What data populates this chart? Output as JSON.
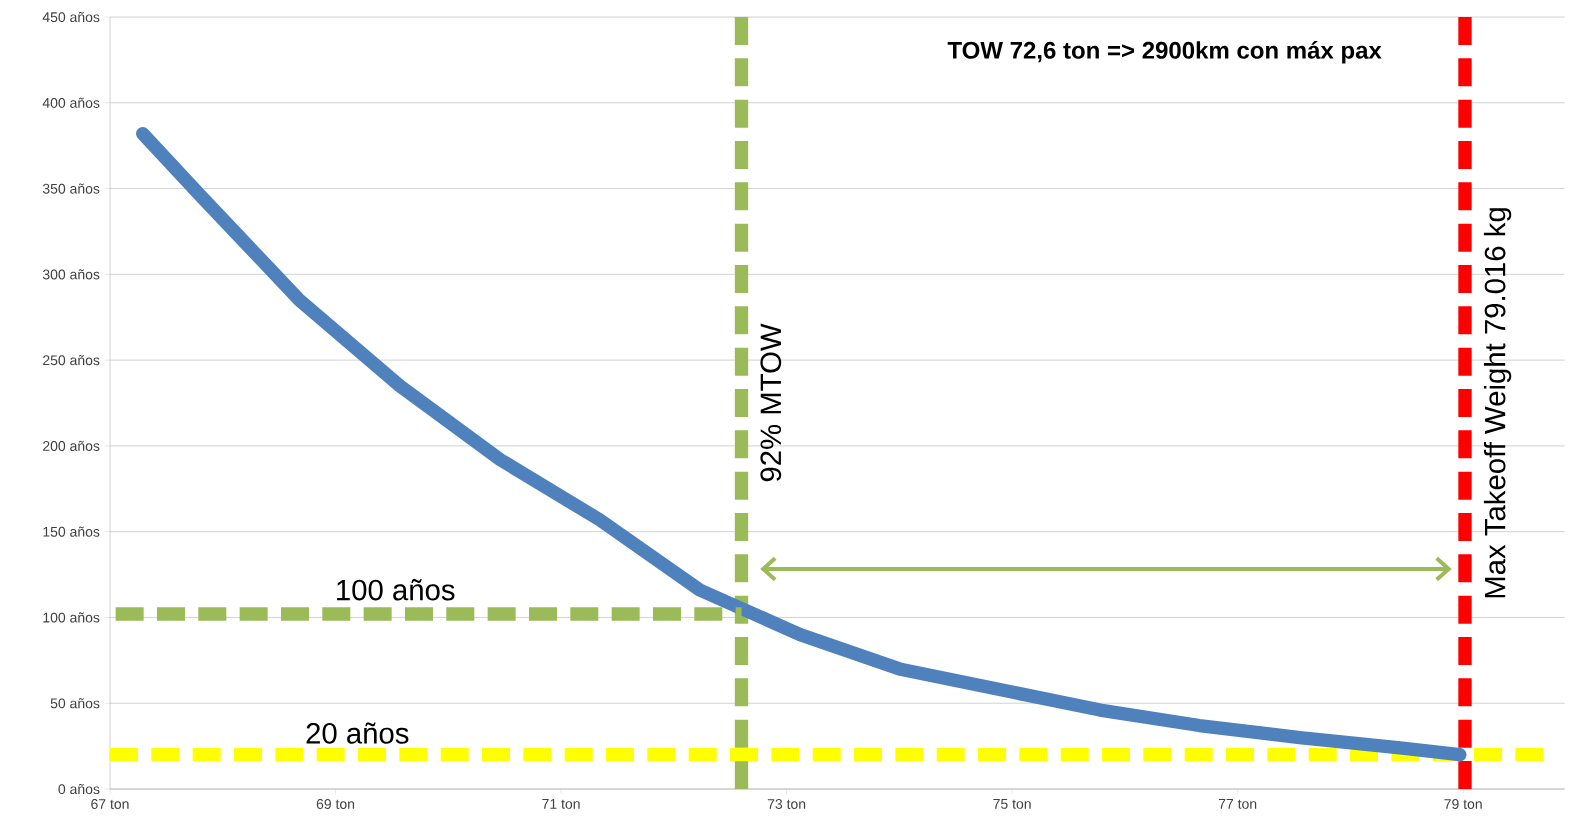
{
  "chart_data": {
    "type": "line",
    "x": [
      67.29,
      67.8,
      68.68,
      69.57,
      70.46,
      71.34,
      72.23,
      73.12,
      74.0,
      74.89,
      75.78,
      76.66,
      77.55,
      78.44,
      78.97
    ],
    "series": [
      {
        "color": "#4f81bd",
        "values": [
          382,
          346,
          285,
          235,
          192,
          157,
          116,
          90,
          70,
          58,
          46,
          37,
          30,
          24,
          20
        ]
      },
      {
        "name": "100 años",
        "color": "#9bbb59",
        "x": [
          67.05,
          72.6
        ],
        "values": [
          102,
          102
        ],
        "line_style": "dashed"
      }
    ],
    "xlim": [
      67,
      79.9
    ],
    "ylim": [
      0,
      450
    ],
    "xticks": [
      {
        "value": 67,
        "label": "67 ton"
      },
      {
        "value": 69,
        "label": "69 ton"
      },
      {
        "value": 71,
        "label": "71 ton"
      },
      {
        "value": 73,
        "label": "73 ton"
      },
      {
        "value": 75,
        "label": "75 ton"
      },
      {
        "value": 77,
        "label": "77 ton"
      },
      {
        "value": 79,
        "label": "79 ton"
      }
    ],
    "yticks": [
      {
        "value": 0,
        "label": "0 años"
      },
      {
        "value": 50,
        "label": "50 años"
      },
      {
        "value": 100,
        "label": "100 años"
      },
      {
        "value": 150,
        "label": "150 años"
      },
      {
        "value": 200,
        "label": "200 años"
      },
      {
        "value": 250,
        "label": "250 años"
      },
      {
        "value": 300,
        "label": "300 años"
      },
      {
        "value": 350,
        "label": "350 años"
      },
      {
        "value": 400,
        "label": "400 años"
      },
      {
        "value": 450,
        "label": "450 años"
      }
    ],
    "grid": "y",
    "ref_lines": [
      {
        "axis": "x",
        "value": 72.6,
        "label": "92% MTOW",
        "color": "#9bbb59",
        "line_style": "dashed"
      },
      {
        "axis": "x",
        "value": 79.016,
        "label": "Max Takeoff Weight 79.016 kg",
        "color": "#ff0000",
        "line_style": "dashed"
      },
      {
        "axis": "y",
        "value": 20,
        "label": "20 años",
        "color": "#ffff00",
        "line_style": "dashed"
      }
    ],
    "annotations": [
      "TOW 72,6 ton => 2900km con máx pax"
    ]
  }
}
